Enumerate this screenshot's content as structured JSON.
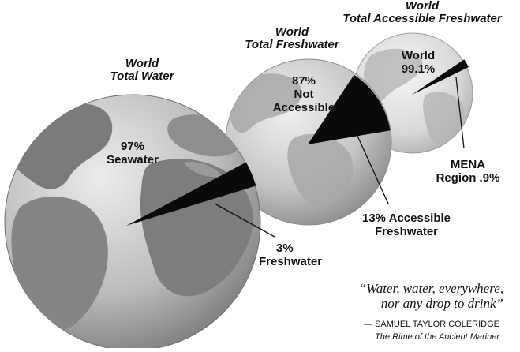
{
  "globes": {
    "total_water": {
      "title_line1": "World",
      "title_line2": "Total Water",
      "major_value": "97%",
      "major_label": "Seawater",
      "minor_value": "3%",
      "minor_label": "Freshwater",
      "major_percent": 97,
      "minor_percent": 3
    },
    "total_freshwater": {
      "title_line1": "World",
      "title_line2": "Total Freshwater",
      "major_value": "87%",
      "major_label_line1": "Not",
      "major_label_line2": "Accessible",
      "minor_label_line1": "13% Accessible",
      "minor_label_line2": "Freshwater",
      "major_percent": 87,
      "minor_percent": 13
    },
    "accessible_freshwater": {
      "title_line1": "World",
      "title_line2": "Total Accessible Freshwater",
      "major_label": "World",
      "major_value": "99.1%",
      "minor_label_line1": "MENA",
      "minor_label_line2": "Region .9%",
      "major_percent": 99.1,
      "minor_percent": 0.9
    }
  },
  "quote": {
    "line1": "“Water, water, everywhere,",
    "line2": "nor any drop to drink”",
    "author": "— SAMUEL TAYLOR COLERIDGE",
    "source": "The Rime of the Ancient Mariner"
  },
  "colors": {
    "globe_light": "#e4e4e4",
    "globe_dark": "#8a8a8a",
    "land": "#7d7d7d",
    "wedge": "#0a0a0a"
  }
}
